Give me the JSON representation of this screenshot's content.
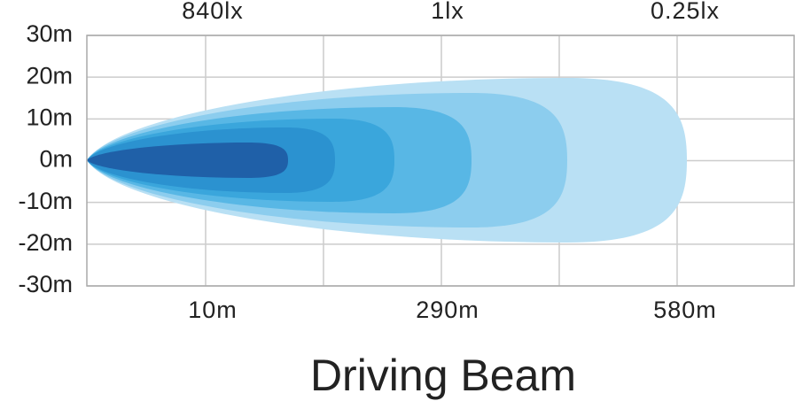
{
  "top_labels": [
    "840lx",
    "1lx",
    "0.25lx"
  ],
  "y_labels": [
    "30m",
    "20m",
    "10m",
    "0m",
    "-10m",
    "-20m",
    "-30m"
  ],
  "x_labels": [
    "10m",
    "290m",
    "580m"
  ],
  "title": "Driving Beam"
}
